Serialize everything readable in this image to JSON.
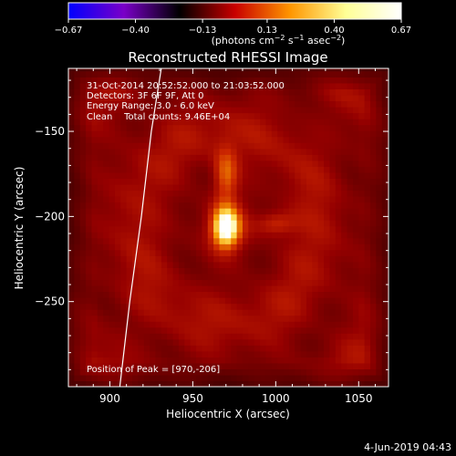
{
  "chart_data": {
    "type": "heatmap",
    "title": "Reconstructed RHESSI Image",
    "xlabel": "Heliocentric X (arcsec)",
    "ylabel": "Heliocentric Y (arcsec)",
    "xlim": [
      875,
      1068
    ],
    "ylim": [
      -300,
      -113
    ],
    "x_ticks": [
      900,
      950,
      1000,
      1050
    ],
    "x_tick_labels": [
      "900",
      "950",
      "1000",
      "1050"
    ],
    "y_ticks": [
      -150,
      -200,
      -250
    ],
    "y_tick_labels": [
      "−150",
      "−200",
      "−250"
    ],
    "colorbar": {
      "range": [
        -0.67,
        0.67
      ],
      "ticks": [
        -0.67,
        -0.4,
        -0.13,
        0.13,
        0.4,
        0.67
      ],
      "tick_labels": [
        "−0.67",
        "−0.40",
        "−0.13",
        "0.13",
        "0.40",
        "0.67"
      ],
      "colors": [
        "#0000ff",
        "#7a00c8",
        "#000000",
        "#c80000",
        "#ff9600",
        "#ffff96",
        "#ffffff"
      ],
      "unit_label": {
        "prefix": "(photons cm",
        "exp1": "−2",
        "mid1": " s",
        "exp2": "−1",
        "mid2": " asec",
        "exp3": "−2",
        "suffix": ")"
      }
    },
    "annotations": [
      "31-Oct-2014 20:52:52.000 to 21:03:52.000",
      "Detectors: 3F 6F 9F, Att 0",
      "Energy Range: 3.0 - 6.0 keV",
      "Clean    Total counts: 9.46E+04"
    ],
    "peak_label": "Position of Peak = [970,-206]",
    "peak": [
      970,
      -206
    ],
    "sources": [
      {
        "x": 970,
        "y": -206,
        "peak": 0.67,
        "sx": 5.5,
        "sy": 8
      },
      {
        "x": 970,
        "y": -175,
        "peak": 0.38,
        "sx": 5,
        "sy": 11
      },
      {
        "x": 1000,
        "y": -204,
        "peak": 0.3,
        "sx": 8,
        "sy": 5
      }
    ],
    "background_level": 0.22,
    "limb_curve": [
      [
        906,
        -300
      ],
      [
        912,
        -250
      ],
      [
        919,
        -200
      ],
      [
        925,
        -150
      ],
      [
        931,
        -113
      ]
    ],
    "line_color": "#ffffff"
  },
  "footer": {
    "timestamp": "4-Jun-2019 04:43"
  }
}
